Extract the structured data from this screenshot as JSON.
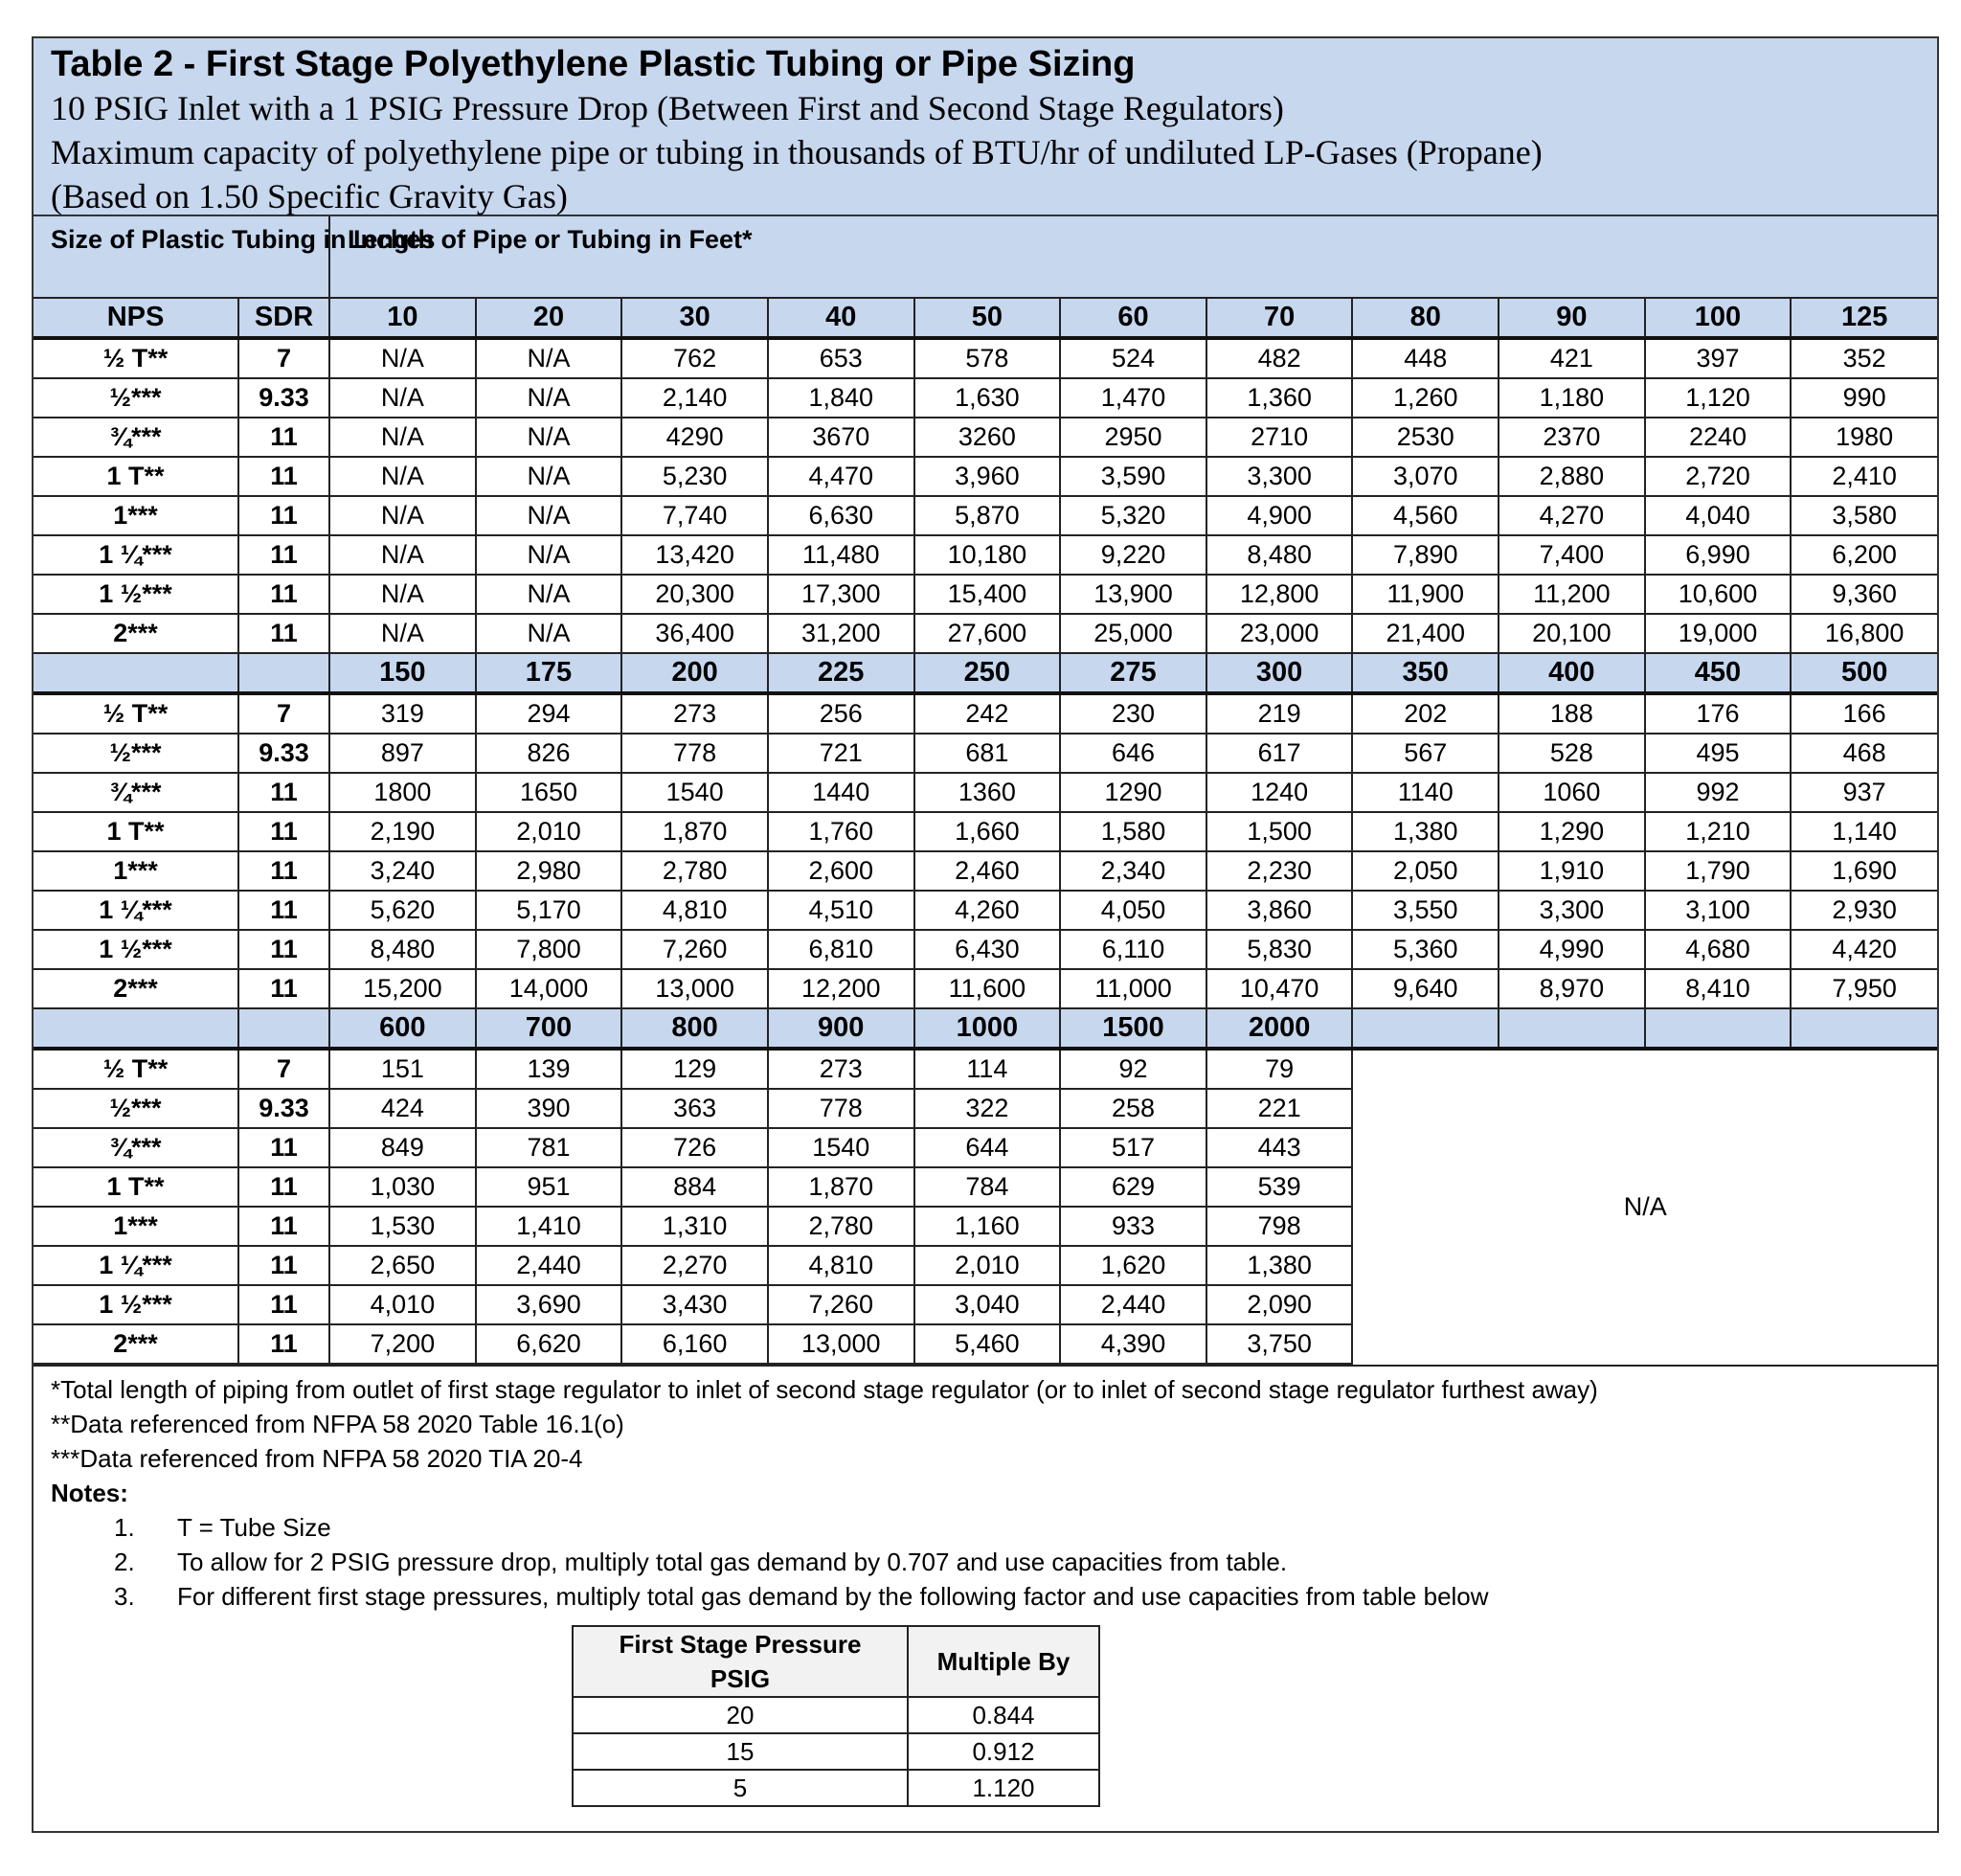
{
  "title": "Table 2 - First Stage Polyethylene Plastic Tubing or Pipe Sizing",
  "subtitles": [
    "10 PSIG Inlet with a 1 PSIG Pressure Drop (Between First and Second Stage Regulators)",
    "Maximum capacity of polyethylene pipe or tubing in thousands of BTU/hr of undiluted LP-Gases (Propane)",
    "(Based on 1.50 Specific Gravity Gas)"
  ],
  "colors": {
    "header_bg": "#c6d7ee",
    "border": "#222222"
  },
  "header": {
    "size_label": "Size of Plastic Tubing in Inches",
    "length_label": "Length of Pipe or Tubing in Feet*",
    "nps": "NPS",
    "sdr": "SDR"
  },
  "sizes": [
    {
      "nps": "½ T**",
      "sdr": "7"
    },
    {
      "nps": "½***",
      "sdr": "9.33"
    },
    {
      "nps": "¾***",
      "sdr": "11"
    },
    {
      "nps": "1 T**",
      "sdr": "11"
    },
    {
      "nps": "1***",
      "sdr": "11"
    },
    {
      "nps": "1 ¼***",
      "sdr": "11"
    },
    {
      "nps": "1 ½***",
      "sdr": "11"
    },
    {
      "nps": "2***",
      "sdr": "11"
    }
  ],
  "blocks": [
    {
      "lengths": [
        "10",
        "20",
        "30",
        "40",
        "50",
        "60",
        "70",
        "80",
        "90",
        "100",
        "125"
      ],
      "rows": [
        [
          "N/A",
          "N/A",
          "762",
          "653",
          "578",
          "524",
          "482",
          "448",
          "421",
          "397",
          "352"
        ],
        [
          "N/A",
          "N/A",
          "2,140",
          "1,840",
          "1,630",
          "1,470",
          "1,360",
          "1,260",
          "1,180",
          "1,120",
          "990"
        ],
        [
          "N/A",
          "N/A",
          "4290",
          "3670",
          "3260",
          "2950",
          "2710",
          "2530",
          "2370",
          "2240",
          "1980"
        ],
        [
          "N/A",
          "N/A",
          "5,230",
          "4,470",
          "3,960",
          "3,590",
          "3,300",
          "3,070",
          "2,880",
          "2,720",
          "2,410"
        ],
        [
          "N/A",
          "N/A",
          "7,740",
          "6,630",
          "5,870",
          "5,320",
          "4,900",
          "4,560",
          "4,270",
          "4,040",
          "3,580"
        ],
        [
          "N/A",
          "N/A",
          "13,420",
          "11,480",
          "10,180",
          "9,220",
          "8,480",
          "7,890",
          "7,400",
          "6,990",
          "6,200"
        ],
        [
          "N/A",
          "N/A",
          "20,300",
          "17,300",
          "15,400",
          "13,900",
          "12,800",
          "11,900",
          "11,200",
          "10,600",
          "9,360"
        ],
        [
          "N/A",
          "N/A",
          "36,400",
          "31,200",
          "27,600",
          "25,000",
          "23,000",
          "21,400",
          "20,100",
          "19,000",
          "16,800"
        ]
      ]
    },
    {
      "lengths": [
        "150",
        "175",
        "200",
        "225",
        "250",
        "275",
        "300",
        "350",
        "400",
        "450",
        "500"
      ],
      "rows": [
        [
          "319",
          "294",
          "273",
          "256",
          "242",
          "230",
          "219",
          "202",
          "188",
          "176",
          "166"
        ],
        [
          "897",
          "826",
          "778",
          "721",
          "681",
          "646",
          "617",
          "567",
          "528",
          "495",
          "468"
        ],
        [
          "1800",
          "1650",
          "1540",
          "1440",
          "1360",
          "1290",
          "1240",
          "1140",
          "1060",
          "992",
          "937"
        ],
        [
          "2,190",
          "2,010",
          "1,870",
          "1,760",
          "1,660",
          "1,580",
          "1,500",
          "1,380",
          "1,290",
          "1,210",
          "1,140"
        ],
        [
          "3,240",
          "2,980",
          "2,780",
          "2,600",
          "2,460",
          "2,340",
          "2,230",
          "2,050",
          "1,910",
          "1,790",
          "1,690"
        ],
        [
          "5,620",
          "5,170",
          "4,810",
          "4,510",
          "4,260",
          "4,050",
          "3,860",
          "3,550",
          "3,300",
          "3,100",
          "2,930"
        ],
        [
          "8,480",
          "7,800",
          "7,260",
          "6,810",
          "6,430",
          "6,110",
          "5,830",
          "5,360",
          "4,990",
          "4,680",
          "4,420"
        ],
        [
          "15,200",
          "14,000",
          "13,000",
          "12,200",
          "11,600",
          "11,000",
          "10,470",
          "9,640",
          "8,970",
          "8,410",
          "7,950"
        ]
      ]
    },
    {
      "lengths": [
        "600",
        "700",
        "800",
        "900",
        "1000",
        "1500",
        "2000"
      ],
      "rows": [
        [
          "151",
          "139",
          "129",
          "273",
          "114",
          "92",
          "79"
        ],
        [
          "424",
          "390",
          "363",
          "778",
          "322",
          "258",
          "221"
        ],
        [
          "849",
          "781",
          "726",
          "1540",
          "644",
          "517",
          "443"
        ],
        [
          "1,030",
          "951",
          "884",
          "1,870",
          "784",
          "629",
          "539"
        ],
        [
          "1,530",
          "1,410",
          "1,310",
          "2,780",
          "1,160",
          "933",
          "798"
        ],
        [
          "2,650",
          "2,440",
          "2,270",
          "4,810",
          "2,010",
          "1,620",
          "1,380"
        ],
        [
          "4,010",
          "3,690",
          "3,430",
          "7,260",
          "3,040",
          "2,440",
          "2,090"
        ],
        [
          "7,200",
          "6,620",
          "6,160",
          "13,000",
          "5,460",
          "4,390",
          "3,750"
        ]
      ],
      "remainder": "N/A"
    }
  ],
  "footnotes": [
    "*Total length of piping from outlet of first stage regulator to inlet of second stage regulator (or to inlet of second stage regulator furthest away)",
    "**Data referenced from NFPA 58 2020 Table 16.1(o)",
    "***Data referenced from NFPA 58 2020 TIA 20-4"
  ],
  "notes_label": "Notes:",
  "notes": [
    {
      "n": "1.",
      "text": "T = Tube Size"
    },
    {
      "n": "2.",
      "text": "To allow for 2 PSIG pressure drop, multiply total gas demand by 0.707 and use capacities from table."
    },
    {
      "n": "3.",
      "text": "For different first stage pressures, multiply total gas demand by the following factor and use capacities from table below"
    }
  ],
  "multiplier_table": {
    "headers": [
      "First Stage Pressure PSIG",
      "Multiple By"
    ],
    "rows": [
      [
        "20",
        "0.844"
      ],
      [
        "15",
        "0.912"
      ],
      [
        "5",
        "1.120"
      ]
    ]
  }
}
